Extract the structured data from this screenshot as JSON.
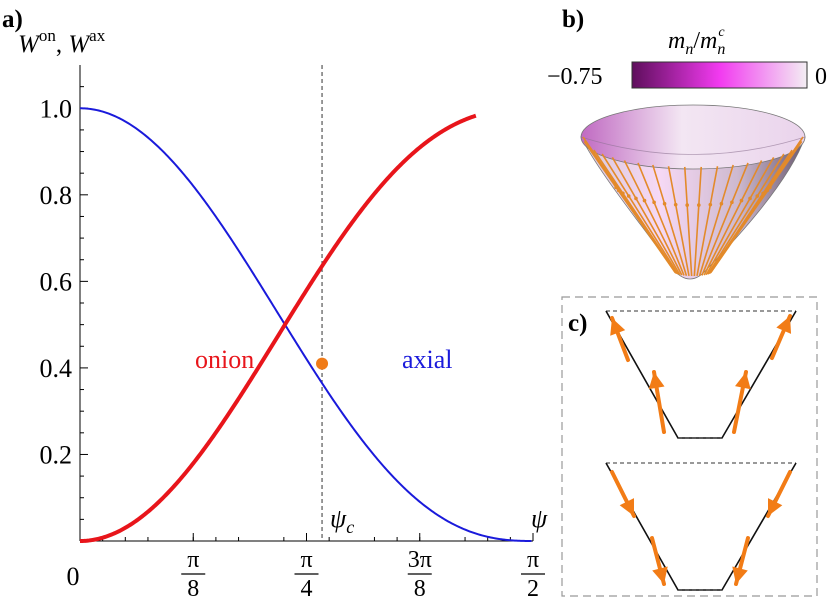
{
  "panel_labels": {
    "a": "a)",
    "b": "b)",
    "c": "c)"
  },
  "chart_data": {
    "type": "line",
    "ylabel": "W^on, W^ax",
    "ylabel_parts": {
      "w1": "W",
      "s1": "on",
      "sep": ", ",
      "w2": "W",
      "s2": "ax"
    },
    "xlabel": "ψ",
    "xlim": [
      0,
      1.5708
    ],
    "ylim": [
      0,
      1.1
    ],
    "yticks": [
      {
        "value": 0.2,
        "label": "0.2"
      },
      {
        "value": 0.4,
        "label": "0.4"
      },
      {
        "value": 0.6,
        "label": "0.6"
      },
      {
        "value": 0.8,
        "label": "0.8"
      },
      {
        "value": 1.0,
        "label": "1.0"
      }
    ],
    "xticks": [
      {
        "value": 0,
        "label": "0"
      },
      {
        "value": 0.3927,
        "num": "π",
        "den": "8"
      },
      {
        "value": 0.7854,
        "num": "π",
        "den": "4"
      },
      {
        "value": 1.1781,
        "num": "3π",
        "den": "8"
      },
      {
        "value": 1.5708,
        "num": "π",
        "den": "2"
      }
    ],
    "series": [
      {
        "name": "onion",
        "color": "#e8151b",
        "function": "1 - cos(psi)^2.5",
        "x": [
          0,
          0.1,
          0.2,
          0.3,
          0.4,
          0.5,
          0.6,
          0.7,
          0.8,
          0.9,
          1.0,
          1.1,
          1.2,
          1.3,
          1.3727
        ],
        "y": [
          0,
          0.012,
          0.049,
          0.109,
          0.189,
          0.285,
          0.393,
          0.505,
          0.617,
          0.722,
          0.813,
          0.887,
          0.941,
          0.975,
          1.1
        ]
      },
      {
        "name": "axial",
        "color": "#1a1adb",
        "function": "cos(psi)^2.5",
        "x": [
          0,
          0.2,
          0.4,
          0.6,
          0.8,
          0.8393,
          1.0,
          1.2,
          1.4,
          1.5708
        ],
        "y": [
          1.0,
          0.951,
          0.811,
          0.607,
          0.383,
          0.41,
          0.187,
          0.059,
          0.006,
          0
        ]
      }
    ],
    "critical_point": {
      "label": "ψ_c",
      "label_main": "ψ",
      "label_sub": "c",
      "x": 0.8393,
      "y": 0.41,
      "color": "#f07b18"
    },
    "annotations": {
      "onion": "onion",
      "axial": "axial"
    }
  },
  "panel_b": {
    "colorbar_label": {
      "m1": "m",
      "s1": "n",
      "slash": "/",
      "m2": "m",
      "s2": "n",
      "sup2": "c"
    },
    "colorbar_min": "−0.75",
    "colorbar_max": "0",
    "colors": {
      "dark": "#5e0e5c",
      "mid": "#f23af0",
      "light": "#f3eef3"
    }
  },
  "panel_c": {
    "arrow_color": "#f27c16"
  }
}
